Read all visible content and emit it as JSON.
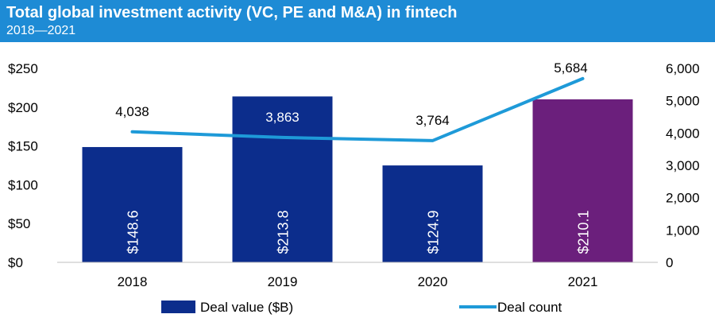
{
  "header": {
    "title": "Total global investment activity (VC, PE and M&A) in fintech",
    "subtitle": "2018—2021"
  },
  "chart_data": {
    "type": "bar",
    "categories": [
      "2018",
      "2019",
      "2020",
      "2021"
    ],
    "series": [
      {
        "name": "Deal value ($B)",
        "kind": "bar",
        "axis": "left",
        "values": [
          148.6,
          213.8,
          124.9,
          210.1
        ],
        "labels": [
          "$148.6",
          "$213.8",
          "$124.9",
          "$210.1"
        ],
        "colors": [
          "#0C2D8C",
          "#0C2D8C",
          "#0C2D8C",
          "#6B1F7C"
        ]
      },
      {
        "name": "Deal count",
        "kind": "line",
        "axis": "right",
        "values": [
          4038,
          3863,
          3764,
          5684
        ],
        "labels": [
          "4,038",
          "3,863",
          "3,764",
          "5,684"
        ],
        "color": "#1E9AD8"
      }
    ],
    "y_left": {
      "ylim": [
        0,
        250
      ],
      "ticks": [
        "$0",
        "$50",
        "$100",
        "$150",
        "$200",
        "$250"
      ]
    },
    "y_right": {
      "ylim": [
        0,
        6000
      ],
      "ticks": [
        "0",
        "1,000",
        "2,000",
        "3,000",
        "4,000",
        "5,000",
        "6,000"
      ]
    },
    "legend_position": "bottom",
    "grid": false
  }
}
